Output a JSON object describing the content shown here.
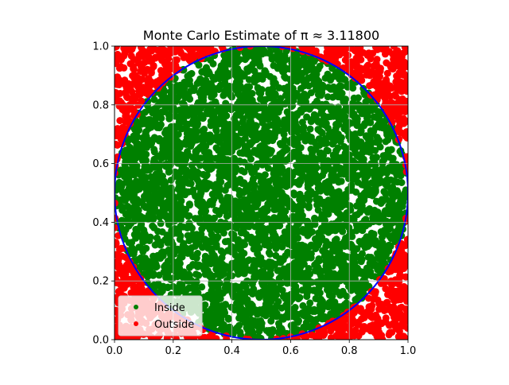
{
  "chart_data": {
    "type": "scatter",
    "title": "Monte Carlo Estimate of π ≈ 3.11800",
    "xlabel": "",
    "ylabel": "",
    "xlim": [
      0,
      1
    ],
    "ylim": [
      0,
      1
    ],
    "x_ticks": [
      "0.0",
      "0.2",
      "0.4",
      "0.6",
      "0.8",
      "1.0"
    ],
    "y_ticks": [
      "0.0",
      "0.2",
      "0.4",
      "0.6",
      "0.8",
      "1.0"
    ],
    "grid": true,
    "legend_position": "lower-left",
    "circle": {
      "center": [
        0.5,
        0.5
      ],
      "radius": 0.5,
      "color": "#0000ff"
    },
    "series": [
      {
        "name": "Inside",
        "color": "#008000",
        "rule": "distance from (0.5, 0.5) <= 0.5"
      },
      {
        "name": "Outside",
        "color": "#ff0000",
        "rule": "distance from (0.5, 0.5) > 0.5"
      }
    ],
    "pi_estimate": 3.118
  }
}
